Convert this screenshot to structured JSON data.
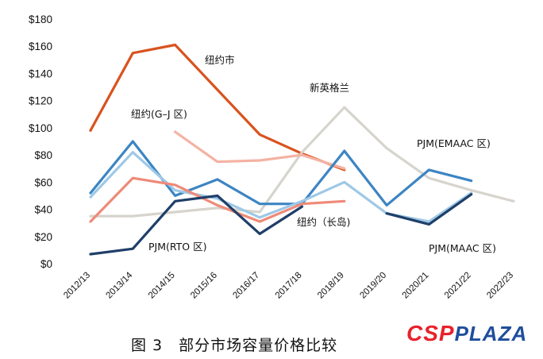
{
  "chart_data": {
    "type": "line",
    "title": "",
    "xlabel": "",
    "ylabel": "",
    "ylim": [
      0,
      180
    ],
    "yticks": [
      "$0",
      "$20",
      "$40",
      "$60",
      "$80",
      "$100",
      "$120",
      "$140",
      "$160",
      "$180"
    ],
    "categories": [
      "2012/13",
      "2013/14",
      "2014/15",
      "2015/16",
      "2016/17",
      "2017/18",
      "2018/19",
      "2019/20",
      "2020/21",
      "2021/22",
      "2022/23"
    ],
    "series": [
      {
        "name": "纽约市",
        "color": "#d9531e",
        "values": [
          98,
          155,
          161,
          128,
          95,
          81,
          69,
          null,
          null,
          null,
          null
        ]
      },
      {
        "name": "新英格兰",
        "color": "#d6d4cc",
        "values": [
          35,
          35,
          38,
          41,
          38,
          82,
          115,
          85,
          63,
          54,
          46
        ]
      },
      {
        "name": "纽约(G-J 区)",
        "color": "#f4b2a3",
        "values": [
          null,
          null,
          97,
          75,
          76,
          80,
          70,
          null,
          null,
          null,
          null
        ]
      },
      {
        "name": "PJM(EMAAC 区)",
        "color": "#3c85c3",
        "values": [
          52,
          90,
          50,
          62,
          44,
          44,
          83,
          43,
          69,
          61,
          null
        ]
      },
      {
        "name": "PJM(MAAC 区)",
        "color": "#9ec8e6",
        "values": [
          49,
          82,
          54,
          48,
          34,
          46,
          60,
          37,
          31,
          52,
          null
        ]
      },
      {
        "name": "纽约(长岛)",
        "color": "#ef8a78",
        "values": [
          31,
          63,
          58,
          43,
          31,
          44,
          46,
          null,
          null,
          null,
          null
        ]
      },
      {
        "name": "PJM(RTO 区)",
        "color": "#1f3f69",
        "values": [
          7,
          11,
          46,
          50,
          22,
          42,
          null,
          37,
          29,
          51,
          null
        ]
      }
    ],
    "annotations": [
      "纽约市",
      "新英格兰",
      "纽约(G–J 区)",
      "PJM(EMAAC 区)",
      "纽约（长岛)",
      "PJM(RTO 区)",
      "PJM(MAAC 区)"
    ]
  },
  "caption": "图 3　部分市场容量价格比较",
  "watermark": {
    "part1": "CSP",
    "part2": "PLAZA"
  }
}
